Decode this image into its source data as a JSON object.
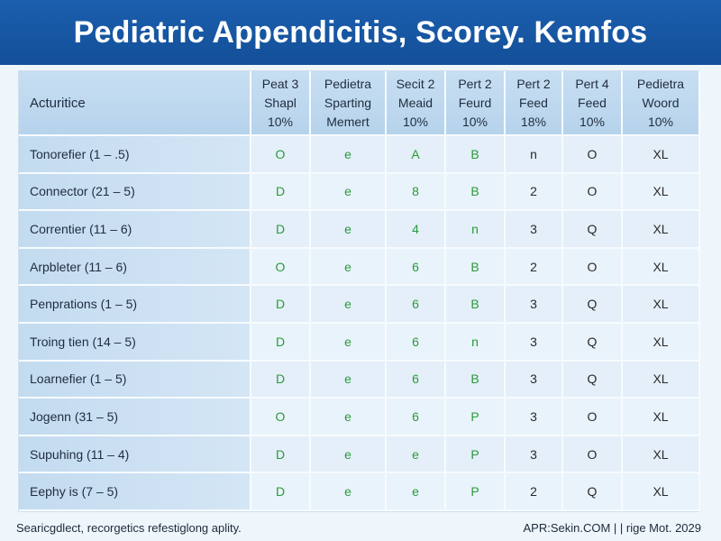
{
  "title": "Pediatric Appendicitis, Scorey. Kemfos",
  "table": {
    "row_header": "Acturitice",
    "columns": [
      [
        "Peat 3",
        "Shapl",
        "10%"
      ],
      [
        "Pedietra",
        "Sparting",
        "Memert"
      ],
      [
        "Secit 2",
        "Meaid",
        "10%"
      ],
      [
        "Pert 2",
        "Feurd",
        "10%"
      ],
      [
        "Pert 2",
        "Feed",
        "18%"
      ],
      [
        "Pert 4",
        "Feed",
        "10%"
      ],
      [
        "Pedietra",
        "Woord",
        "10%"
      ]
    ],
    "rows": [
      {
        "label": "Tonorefier (1 – .5)",
        "cells": [
          "O",
          "e",
          "A",
          "B",
          "n",
          "O",
          "XL"
        ]
      },
      {
        "label": "Connector (21 – 5)",
        "cells": [
          "D",
          "e",
          "8",
          "B",
          "2",
          "O",
          "XL"
        ]
      },
      {
        "label": "Correntier (11 – 6)",
        "cells": [
          "D",
          "e",
          "4",
          "n",
          "3",
          "Q",
          "XL"
        ]
      },
      {
        "label": "Arpbleter (11 – 6)",
        "cells": [
          "O",
          "e",
          "6",
          "B",
          "2",
          "O",
          "XL"
        ]
      },
      {
        "label": "Penprations (1 – 5)",
        "cells": [
          "D",
          "e",
          "6",
          "B",
          "3",
          "Q",
          "XL"
        ]
      },
      {
        "label": "Troing tien (14 – 5)",
        "cells": [
          "D",
          "e",
          "6",
          "n",
          "3",
          "Q",
          "XL"
        ]
      },
      {
        "label": "Loarnefier (1 – 5)",
        "cells": [
          "D",
          "e",
          "6",
          "B",
          "3",
          "Q",
          "XL"
        ]
      },
      {
        "label": "Jogenn (31 – 5)",
        "cells": [
          "O",
          "e",
          "6",
          "P",
          "3",
          "O",
          "XL"
        ]
      },
      {
        "label": "Supuhing (11 – 4)",
        "cells": [
          "D",
          "e",
          "e",
          "P",
          "3",
          "O",
          "XL"
        ]
      },
      {
        "label": "Eephy is (7 – 5)",
        "cells": [
          "D",
          "e",
          "e",
          "P",
          "2",
          "Q",
          "XL"
        ]
      }
    ]
  },
  "footer": {
    "left": "Searicgdlect, recorgetics refestiglong aplity.",
    "right": "APR:Sekin.COM | | rige Mot. 2029"
  },
  "colors": {
    "title_bg": "#1b5fae",
    "header_bg": "#c7def2",
    "green_text": "#2a9a3a"
  }
}
